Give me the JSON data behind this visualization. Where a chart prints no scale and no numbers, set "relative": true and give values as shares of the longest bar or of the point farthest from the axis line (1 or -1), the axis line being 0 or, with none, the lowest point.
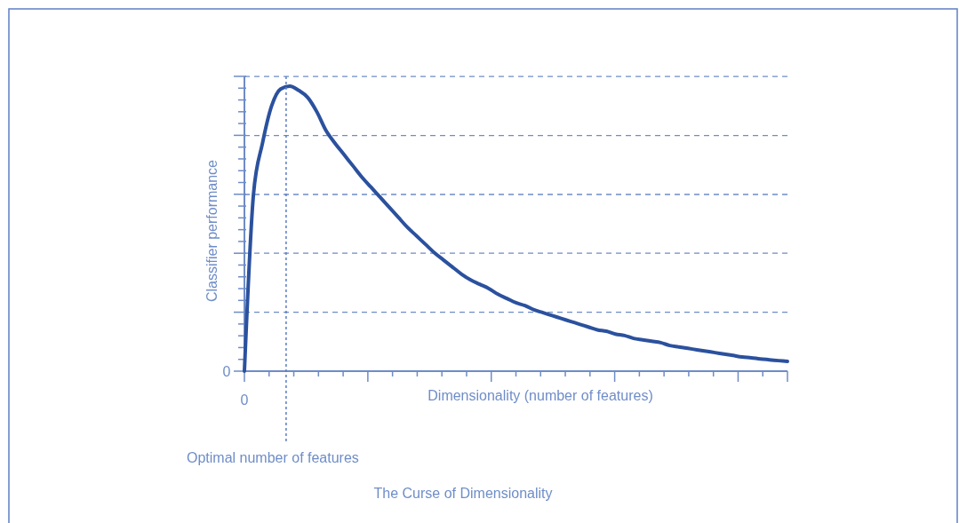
{
  "chart_data": {
    "type": "line",
    "relative": true,
    "title": "The Curse of Dimensionality",
    "xlabel": "Dimensionality (number of features)",
    "ylabel": "Classifier performance",
    "categories": [
      null,
      null,
      null,
      null,
      null,
      null,
      null,
      null,
      null,
      null,
      null,
      null,
      null,
      null,
      null,
      null,
      null,
      null,
      null,
      null,
      null,
      null,
      null,
      null,
      null,
      null,
      null,
      null,
      null,
      null,
      null,
      null,
      null,
      null,
      null,
      null,
      null,
      null,
      null,
      null,
      null,
      null,
      null,
      null,
      null,
      null,
      null,
      null,
      null,
      null,
      null,
      null,
      null,
      null,
      null,
      null,
      null,
      null,
      null,
      null,
      null
    ],
    "series": [
      {
        "color": "#2b519e",
        "values": [
          0,
          0.62,
          0.8,
          0.93,
          0.99,
          1,
          0.985,
          0.96,
          0.91,
          0.845,
          0.8,
          0.76,
          0.72,
          0.68,
          0.645,
          0.61,
          0.575,
          0.54,
          0.505,
          0.475,
          0.445,
          0.415,
          0.39,
          0.365,
          0.34,
          0.32,
          0.305,
          0.29,
          0.27,
          0.255,
          0.24,
          0.23,
          0.215,
          0.205,
          0.195,
          0.185,
          0.175,
          0.165,
          0.155,
          0.145,
          0.14,
          0.13,
          0.125,
          0.115,
          0.11,
          0.105,
          0.1,
          0.09,
          0.085,
          0.08,
          0.075,
          0.07,
          0.065,
          0.06,
          0.055,
          0.05,
          0.047,
          0.043,
          0.04,
          0.037,
          0.034
        ]
      }
    ],
    "ref_lines": [
      {
        "axis": "y",
        "value": 0.207,
        "line_style": "dashed",
        "color": "#6e8cc6"
      },
      {
        "axis": "y",
        "value": 0.414,
        "line_style": "dashed",
        "color": "#6e8cc6"
      },
      {
        "axis": "y",
        "value": 0.62,
        "line_style": "dashed",
        "color": "#6e8cc6"
      },
      {
        "axis": "y",
        "value": 0.827,
        "line_style": "dashed",
        "color": "#6e8cc6"
      },
      {
        "axis": "y",
        "value": 1.034,
        "line_style": "dashed",
        "color": "#6e8cc6"
      }
    ],
    "annotations": [
      "0",
      "0",
      "Optimal number of features"
    ],
    "line_style": "solid",
    "marker": "none"
  }
}
